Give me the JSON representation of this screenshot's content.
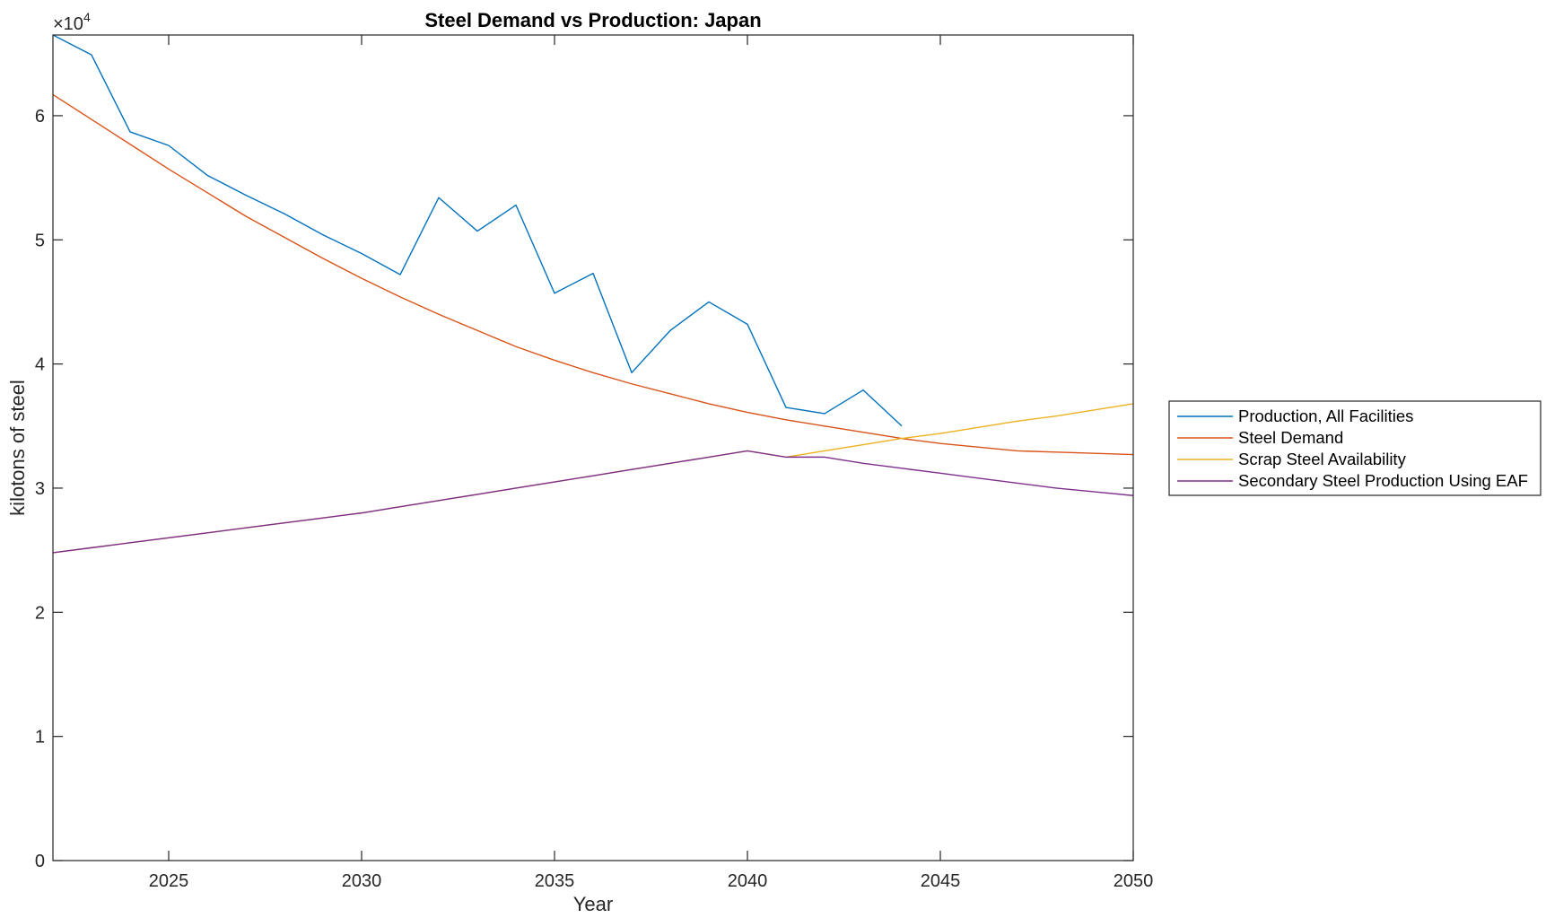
{
  "chart_data": {
    "type": "line",
    "title": "Steel Demand vs Production: Japan",
    "xlabel": "Year",
    "ylabel": "kilotons of steel",
    "exponent_label_base": "×10",
    "exponent_label_power": "4",
    "xlim": [
      2022,
      2050
    ],
    "ylim": [
      0,
      66500
    ],
    "x_ticks": [
      2025,
      2030,
      2035,
      2040,
      2045,
      2050
    ],
    "y_ticks": [
      0,
      10000,
      20000,
      30000,
      40000,
      50000,
      60000
    ],
    "y_tick_labels": [
      "0",
      "1",
      "2",
      "3",
      "4",
      "5",
      "6"
    ],
    "grid": false,
    "legend_position": "outside right",
    "x": [
      2022,
      2023,
      2024,
      2025,
      2026,
      2027,
      2028,
      2029,
      2030,
      2031,
      2032,
      2033,
      2034,
      2035,
      2036,
      2037,
      2038,
      2039,
      2040,
      2041,
      2042,
      2043,
      2044,
      2045,
      2046,
      2047,
      2048,
      2049,
      2050
    ],
    "series": [
      {
        "name": "Production, All Facilities",
        "color": "#0072BD",
        "values": [
          66500,
          64900,
          58700,
          57600,
          55200,
          53600,
          52100,
          50400,
          48900,
          47200,
          53400,
          50700,
          52800,
          45700,
          47300,
          39300,
          42700,
          45000,
          43200,
          36500,
          36000,
          37900,
          35000,
          null,
          null,
          null,
          null,
          null,
          null
        ]
      },
      {
        "name": "Steel Demand",
        "color": "#D95319",
        "values": [
          61700,
          59700,
          57700,
          55700,
          53800,
          51900,
          50200,
          48500,
          46900,
          45400,
          44000,
          42700,
          41400,
          40300,
          39300,
          38400,
          37600,
          36800,
          36100,
          35500,
          35000,
          34500,
          34000,
          33600,
          33300,
          33000,
          32900,
          32800,
          32700
        ]
      },
      {
        "name": "Scrap Steel Availability",
        "color": "#EDB120",
        "values": [
          24800,
          25200,
          25600,
          26000,
          26400,
          26800,
          27200,
          27600,
          28000,
          28500,
          29000,
          29500,
          30000,
          30500,
          31000,
          31500,
          32000,
          32500,
          33000,
          32500,
          33000,
          33500,
          34000,
          34400,
          34900,
          35400,
          35800,
          36300,
          36800
        ]
      },
      {
        "name": "Secondary Steel Production Using EAF",
        "color": "#7E2F8E",
        "values": [
          24800,
          25200,
          25600,
          26000,
          26400,
          26800,
          27200,
          27600,
          28000,
          28500,
          29000,
          29500,
          30000,
          30500,
          31000,
          31500,
          32000,
          32500,
          33000,
          32500,
          32500,
          32000,
          31600,
          31200,
          30800,
          30400,
          30000,
          29700,
          29400
        ]
      }
    ]
  }
}
